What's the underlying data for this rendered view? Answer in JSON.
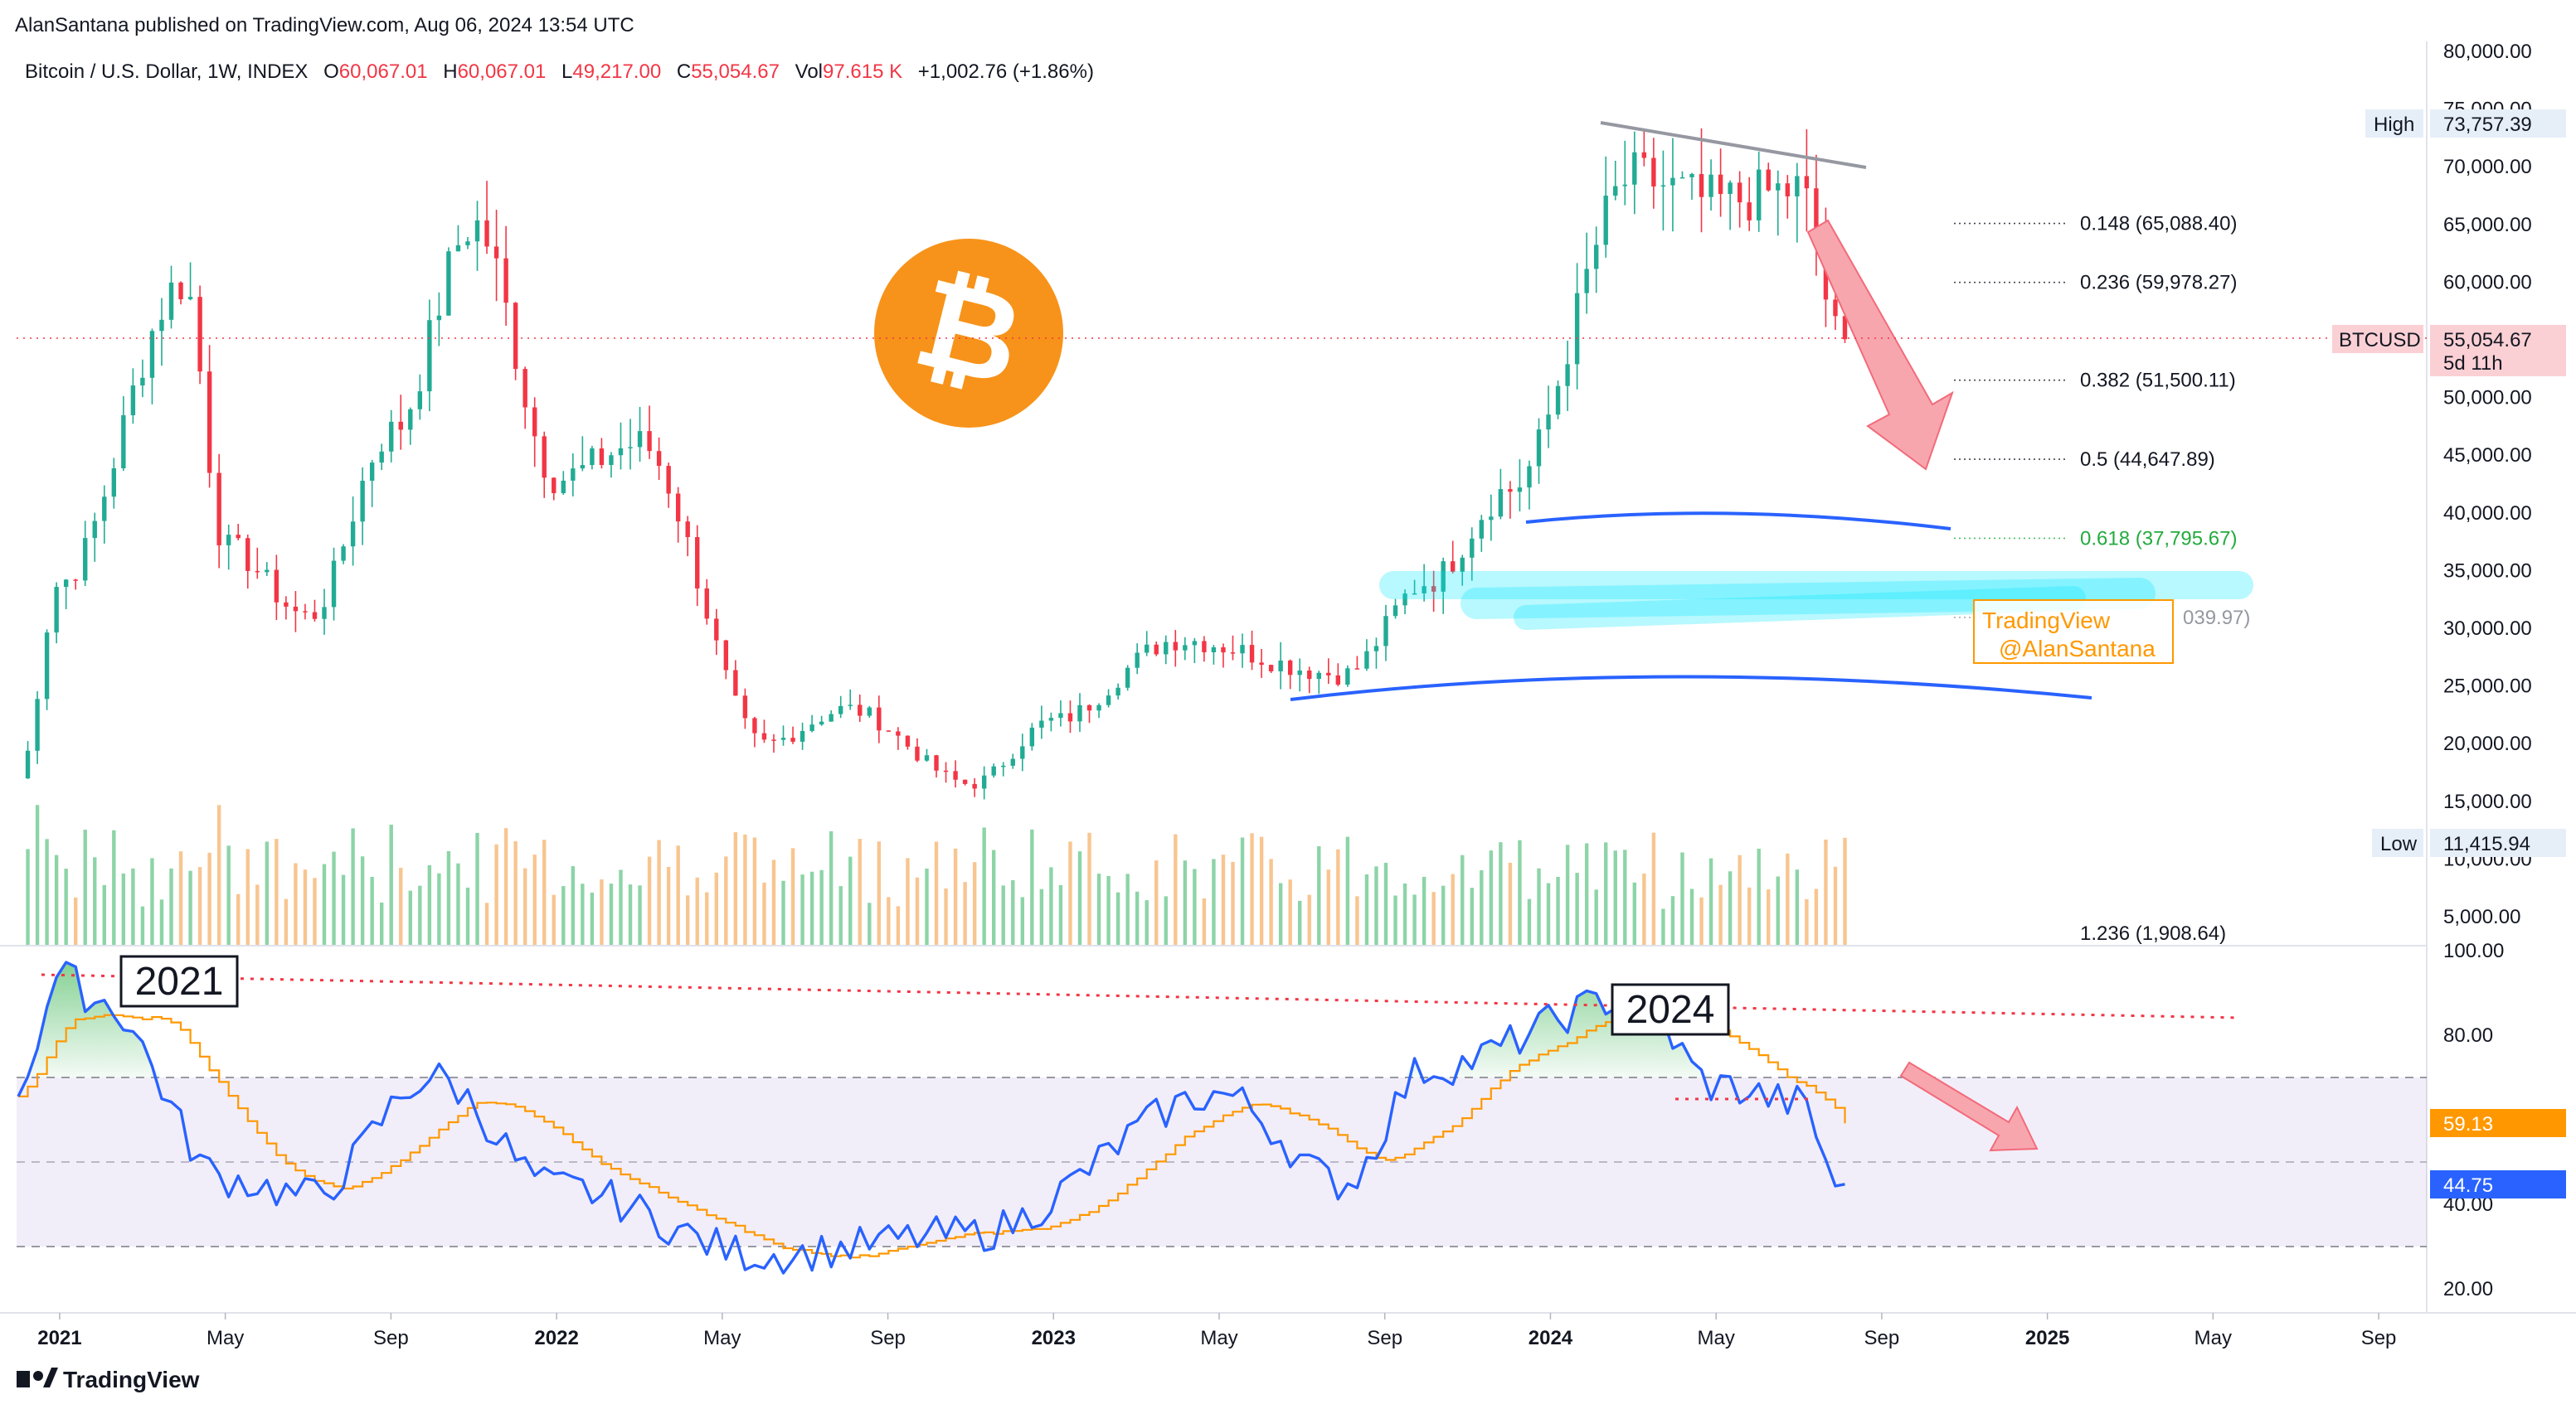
{
  "header": {
    "published_line": "AlanSantana published on TradingView.com, Aug 06, 2024 13:54 UTC",
    "symbol": "Bitcoin / U.S. Dollar, 1W, INDEX",
    "o_label": "O",
    "o_value": "60,067.01",
    "h_label": "H",
    "h_value": "60,067.01",
    "l_label": "L",
    "l_value": "49,217.00",
    "c_label": "C",
    "c_value": "55,054.67",
    "vol_label": "Vol",
    "vol_value": "97.615 K",
    "change": "+1,002.76 (+1.86%)"
  },
  "footer": {
    "brand": "TradingView"
  },
  "colors": {
    "up": "#22ab94",
    "down": "#f23645",
    "accent": "#2962ff",
    "rsi_line": "#2962ff",
    "rsi_ma": "#ff9800",
    "vol_up": "#66c68a",
    "vol_down": "#f5b26b",
    "fib_green": "#22ab3d",
    "logo_orange": "#f7931a"
  },
  "price_axis": {
    "ticks": [
      "80,000.00",
      "75,000.00",
      "70,000.00",
      "65,000.00",
      "60,000.00",
      "55,000.00",
      "50,000.00",
      "45,000.00",
      "40,000.00",
      "35,000.00",
      "30,000.00",
      "25,000.00",
      "20,000.00",
      "15,000.00",
      "10,000.00",
      "5,000.00"
    ],
    "high_label": "High",
    "high_value": "73,757.39",
    "low_label": "Low",
    "low_value": "11,415.94",
    "current_symbol": "BTCUSD",
    "current_value": "55,054.67",
    "countdown": "5d 11h"
  },
  "rsi_axis": {
    "ticks": [
      "100.00",
      "80.00",
      "40.00",
      "20.00"
    ],
    "ma_value": "59.13",
    "rsi_value": "44.75"
  },
  "time_axis": {
    "labels": [
      {
        "t": "2021",
        "year": true
      },
      {
        "t": "May",
        "year": false
      },
      {
        "t": "Sep",
        "year": false
      },
      {
        "t": "2022",
        "year": true
      },
      {
        "t": "May",
        "year": false
      },
      {
        "t": "Sep",
        "year": false
      },
      {
        "t": "2023",
        "year": true
      },
      {
        "t": "May",
        "year": false
      },
      {
        "t": "Sep",
        "year": false
      },
      {
        "t": "2024",
        "year": true
      },
      {
        "t": "May",
        "year": false
      },
      {
        "t": "Sep",
        "year": false
      },
      {
        "t": "2025",
        "year": true
      },
      {
        "t": "May",
        "year": false
      },
      {
        "t": "Sep",
        "year": false
      }
    ]
  },
  "fib_levels": [
    {
      "label": "0.148 (65,088.40)",
      "value": 65088.4,
      "color": "#131722"
    },
    {
      "label": "0.236 (59,978.27)",
      "value": 59978.27,
      "color": "#131722"
    },
    {
      "label": "0.382 (51,500.11)",
      "value": 51500.11,
      "color": "#131722"
    },
    {
      "label": "0.5 (44,647.89)",
      "value": 44647.89,
      "color": "#131722"
    },
    {
      "label": "0.618 (37,795.67)",
      "value": 37795.67,
      "color": "#22ab3d"
    },
    {
      "label": "039.97)",
      "value": 30939.97,
      "color": "#9598a1"
    },
    {
      "label": "1.236 (1,908.64)",
      "value": 1908.64,
      "color": "#131722"
    }
  ],
  "annotations": {
    "box_2021": "2021",
    "box_2024": "2024",
    "watermark_line1": "TradingView",
    "watermark_line2": "@AlanSantana"
  },
  "chart_data": {
    "type": "candlestick",
    "title": "Bitcoin / U.S. Dollar, 1W, INDEX",
    "panes": [
      "price (candles + volume)",
      "RSI"
    ],
    "x_range": [
      "2020-12",
      "2025-10"
    ],
    "price_ylim": [
      5000,
      80000
    ],
    "rsi_ylim": [
      20,
      100
    ],
    "rsi_band": [
      30,
      70
    ],
    "grid": false,
    "price_anchors": [
      {
        "date": "2020-12",
        "close": 17000
      },
      {
        "date": "2021-01",
        "close": 34000
      },
      {
        "date": "2021-04",
        "close": 60000
      },
      {
        "date": "2021-05",
        "close": 37000
      },
      {
        "date": "2021-07",
        "close": 31000
      },
      {
        "date": "2021-09",
        "close": 47000
      },
      {
        "date": "2021-11",
        "close": 65000
      },
      {
        "date": "2022-01",
        "close": 43000
      },
      {
        "date": "2022-03",
        "close": 46000
      },
      {
        "date": "2022-06",
        "close": 20000
      },
      {
        "date": "2022-08",
        "close": 23000
      },
      {
        "date": "2022-11",
        "close": 16500
      },
      {
        "date": "2023-01",
        "close": 22000
      },
      {
        "date": "2023-04",
        "close": 29000
      },
      {
        "date": "2023-08",
        "close": 26000
      },
      {
        "date": "2023-10",
        "close": 34000
      },
      {
        "date": "2023-12",
        "close": 42000
      },
      {
        "date": "2024-03",
        "close": 69000
      },
      {
        "date": "2024-05",
        "close": 67000
      },
      {
        "date": "2024-07",
        "close": 68000
      },
      {
        "date": "2024-08",
        "close": 55054.67
      }
    ],
    "rsi_anchors": [
      {
        "date": "2020-12",
        "rsi": 68
      },
      {
        "date": "2021-01",
        "rsi": 94
      },
      {
        "date": "2021-02",
        "rsi": 88
      },
      {
        "date": "2021-05",
        "rsi": 46
      },
      {
        "date": "2021-07",
        "rsi": 42
      },
      {
        "date": "2021-10",
        "rsi": 70
      },
      {
        "date": "2022-01",
        "rsi": 44
      },
      {
        "date": "2022-06",
        "rsi": 28
      },
      {
        "date": "2022-11",
        "rsi": 33
      },
      {
        "date": "2023-05",
        "rsi": 66
      },
      {
        "date": "2023-08",
        "rsi": 45
      },
      {
        "date": "2023-10",
        "rsi": 72
      },
      {
        "date": "2024-03",
        "rsi": 89
      },
      {
        "date": "2024-05",
        "rsi": 68
      },
      {
        "date": "2024-07",
        "rsi": 64
      },
      {
        "date": "2024-08",
        "rsi": 44.75
      }
    ],
    "rsi_ma_last": 59.13,
    "high": 73757.39,
    "low": 11415.94,
    "last_close": 55054.67
  }
}
